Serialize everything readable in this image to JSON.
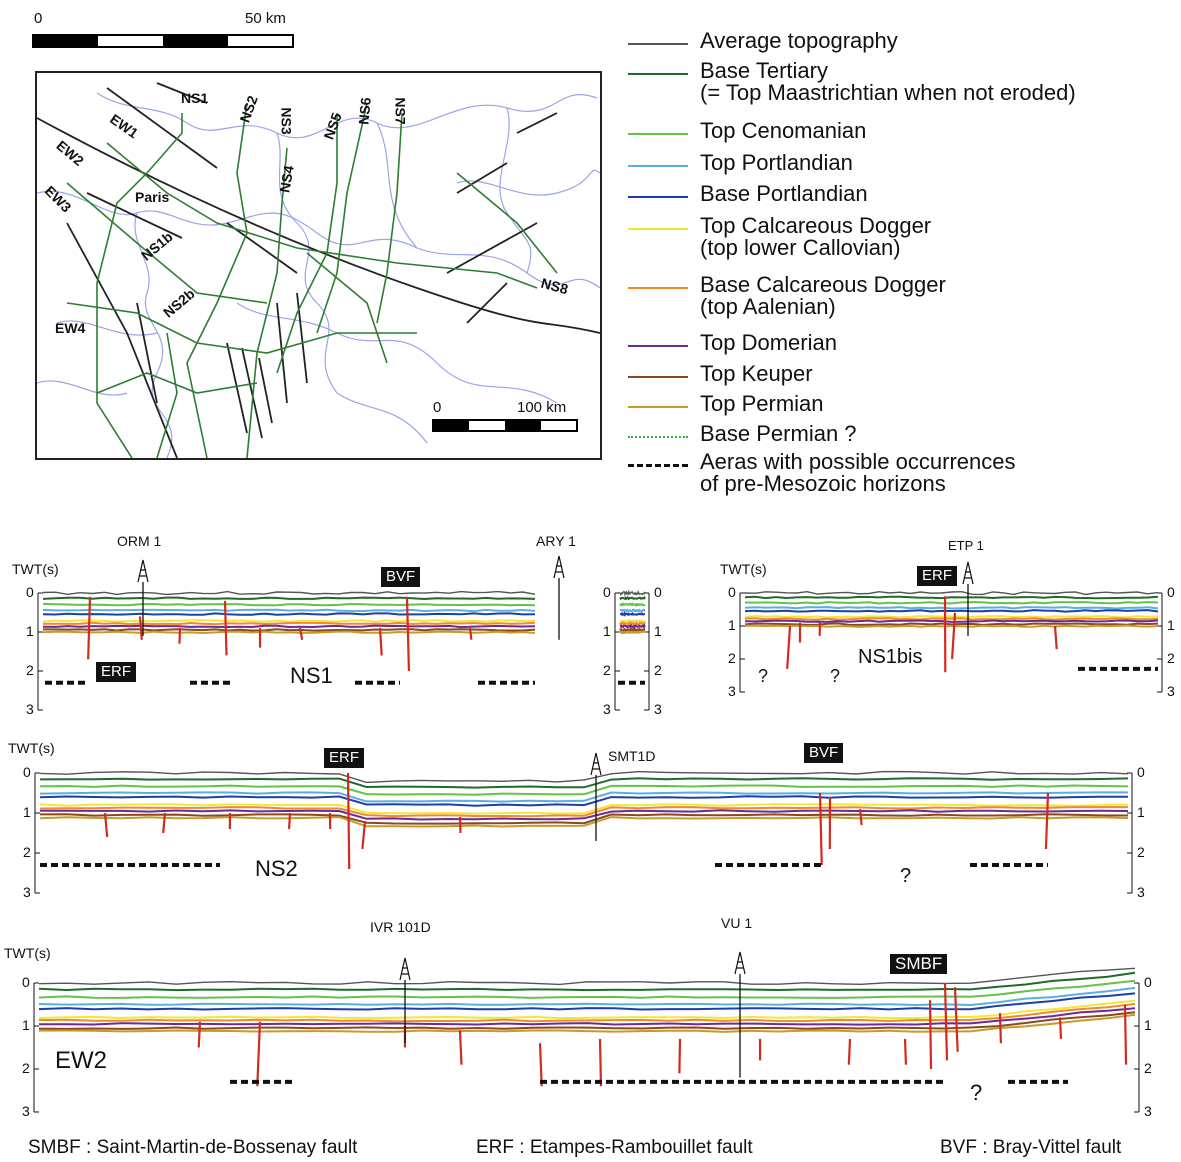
{
  "top_scale": {
    "zero": "0",
    "label": "50 km"
  },
  "map": {
    "place": "Paris",
    "lines": [
      "NS1",
      "NS2",
      "NS3",
      "NS4",
      "NS5",
      "NS6",
      "NS7",
      "NS8",
      "EW1",
      "EW2",
      "EW3",
      "EW4",
      "NS1b",
      "NS2b"
    ],
    "scale": {
      "zero": "0",
      "label": "100 km"
    }
  },
  "legend": [
    {
      "label": "Average topography",
      "color": "#555555",
      "style": "solid"
    },
    {
      "label": "Base Tertiary\n(= Top Maastrichtian when not eroded)",
      "color": "#1f6b2a",
      "style": "solid"
    },
    {
      "label": "Top Cenomanian",
      "color": "#66c14a",
      "style": "solid"
    },
    {
      "label": "Top Portlandian",
      "color": "#5aaee0",
      "style": "solid"
    },
    {
      "label": "Base Portlandian",
      "color": "#1f3fa8",
      "style": "solid"
    },
    {
      "label": "Top Calcareous Dogger\n(top lower Callovian)",
      "color": "#f2e63a",
      "style": "solid"
    },
    {
      "label": "Base Calcareous Dogger\n(top Aalenian)",
      "color": "#f08a2a",
      "style": "solid"
    },
    {
      "label": "Top Domerian",
      "color": "#6a2a9a",
      "style": "solid"
    },
    {
      "label": "Top Keuper",
      "color": "#8a4a1e",
      "style": "solid"
    },
    {
      "label": "Top Permian",
      "color": "#c79a2a",
      "style": "solid"
    },
    {
      "label": "Base Permian ?",
      "color": "#3aa84a",
      "style": "dotted"
    },
    {
      "label": "Aeras with possible occurrences\nof pre-Mesozoic horizons",
      "color": "#111111",
      "style": "dashed"
    }
  ],
  "sections": {
    "axis_title": "TWT(s)",
    "ticks": [
      "0",
      "1",
      "2",
      "3"
    ],
    "ns1": {
      "name": "NS1",
      "wells": [
        "ORM 1",
        "ARY 1"
      ],
      "faults": [
        "BVF",
        "ERF"
      ]
    },
    "ns1bis": {
      "name": "NS1bis",
      "wells": [
        "ETP 1"
      ],
      "faults": [
        "ERF"
      ]
    },
    "ns2": {
      "name": "NS2",
      "wells": [
        "SMT1D"
      ],
      "faults": [
        "ERF",
        "BVF"
      ]
    },
    "ew2": {
      "name": "EW2",
      "wells": [
        "IVR 101D",
        "VU 1"
      ],
      "faults": [
        "SMBF"
      ]
    },
    "unknown": "?"
  },
  "footer": {
    "smbf": "SMBF : Saint-Martin-de-Bossenay fault",
    "erf": "ERF : Etampes-Rambouillet fault",
    "bvf": "BVF : Bray-Vittel fault"
  }
}
